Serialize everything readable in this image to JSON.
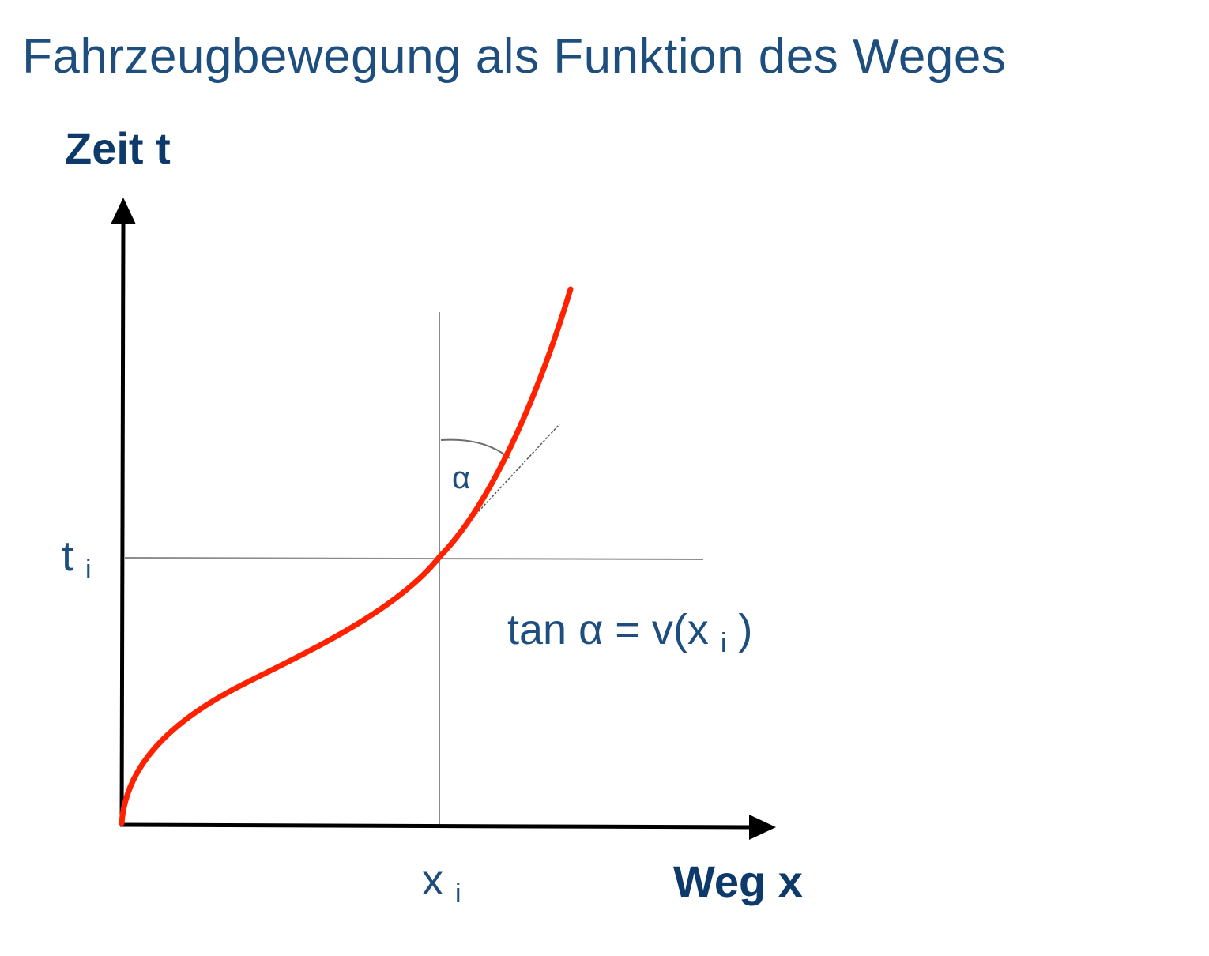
{
  "title": "Fahrzeugbewegung als Funktion des Weges",
  "axes": {
    "y_label": "Zeit t",
    "x_label": "Weg x"
  },
  "markers": {
    "t_base": "t",
    "t_sub": "i",
    "x_base": "x",
    "x_sub": "i"
  },
  "angle_label": "α",
  "formula": {
    "lhs": "tan α = v(x",
    "sub": "i",
    "rhs": ")"
  },
  "colors": {
    "title": "#1d4e7e",
    "axis_label": "#0d3a6b",
    "curve": "#ff2200",
    "axes": "#000000",
    "guides": "#8c8c8c"
  }
}
